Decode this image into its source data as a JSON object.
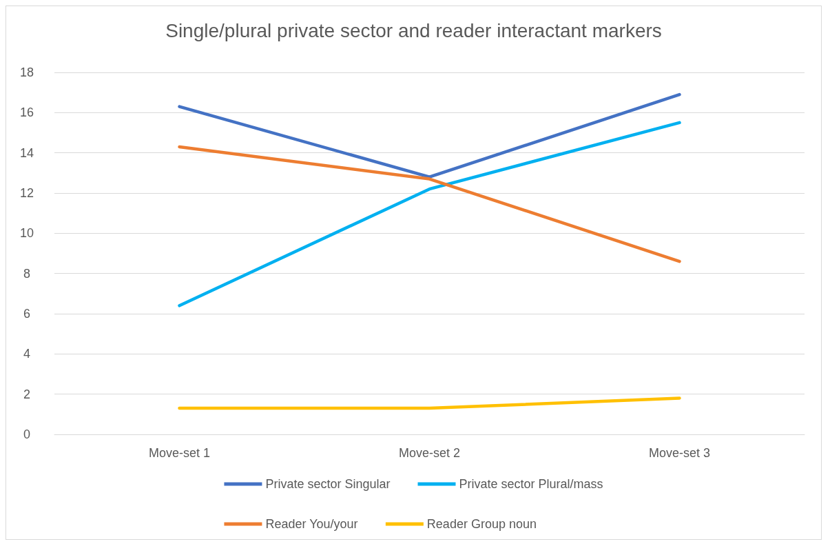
{
  "chart_data": {
    "type": "line",
    "title": "Single/plural private sector and reader interactant markers",
    "categories": [
      "Move-set 1",
      "Move-set 2",
      "Move-set 3"
    ],
    "series": [
      {
        "name": "Private sector Singular",
        "color": "#4472c4",
        "values": [
          16.3,
          12.8,
          16.9
        ]
      },
      {
        "name": "Private sector Plural/mass",
        "color": "#00b0f0",
        "values": [
          6.4,
          12.2,
          15.5
        ]
      },
      {
        "name": "Reader You/your",
        "color": "#ed7d31",
        "values": [
          14.3,
          12.7,
          8.6
        ]
      },
      {
        "name": "Reader Group noun",
        "color": "#ffc000",
        "values": [
          1.3,
          1.3,
          1.8
        ]
      }
    ],
    "ylim": [
      0,
      18
    ],
    "yticks": [
      0,
      2,
      4,
      6,
      8,
      10,
      12,
      14,
      16,
      18
    ],
    "grid": "y",
    "legend": "bottom",
    "marker": "none",
    "line_style": "solid"
  }
}
